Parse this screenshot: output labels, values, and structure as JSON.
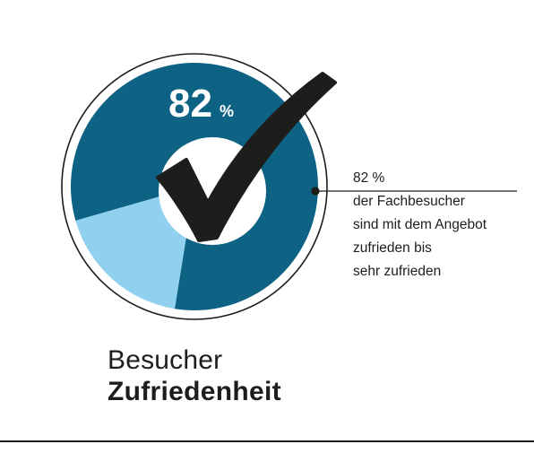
{
  "chart_data": {
    "type": "pie",
    "slices": [
      {
        "label": "zufrieden bis sehr zufrieden",
        "value": 82,
        "color": "#0e6384"
      },
      {
        "label": "",
        "value": 18,
        "color": "#8fd1ee"
      }
    ],
    "center_value": "82",
    "center_unit": "%",
    "title_line1": "Besucher",
    "title_line2": "Zufriedenheit",
    "annotation": {
      "value": "82 %",
      "lines": [
        "der Fachbesucher",
        "sind mit dem Angebot",
        "zufrieden bis",
        "sehr zufrieden"
      ]
    }
  },
  "colors": {
    "dark": "#0e6384",
    "light": "#8fd1ee",
    "ink": "#1d1d1b",
    "background": "#ffffff"
  },
  "icons": {
    "center": "checkmark-icon"
  }
}
